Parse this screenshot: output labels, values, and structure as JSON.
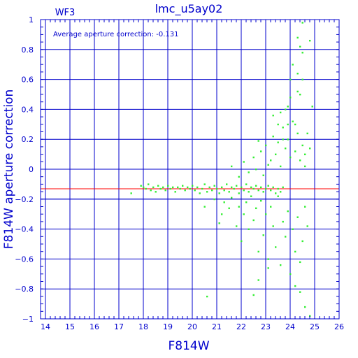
{
  "chart_data": {
    "type": "scatter",
    "title": "lmc_u5ay02",
    "corner_label": "WF3",
    "annotation": "Average aperture correction: -0.131",
    "xlabel": "F814W",
    "ylabel": "F814W aperture correction",
    "xlim": [
      13.8,
      26
    ],
    "ylim": [
      -1,
      1
    ],
    "xticks": [
      14,
      15,
      16,
      17,
      18,
      19,
      20,
      21,
      22,
      23,
      24,
      25,
      26
    ],
    "yticks": [
      -1,
      -0.8,
      -0.6,
      -0.4,
      -0.2,
      0,
      0.2,
      0.4,
      0.6,
      0.8,
      1
    ],
    "ytick_labels": [
      "−1",
      "−0.8",
      "−0.6",
      "−0.4",
      "−0.2",
      "0",
      "0.2",
      "0.4",
      "0.6",
      "0.8",
      "1"
    ],
    "grid": true,
    "average_line": -0.131,
    "reference_line": -0.2,
    "colors": {
      "axes": "#0000cc",
      "points": "#33ee33",
      "average_line": "#ff0000",
      "text": "#0000cc"
    },
    "series": [
      {
        "values": [
          [
            17.5,
            -0.16
          ],
          [
            17.9,
            -0.11
          ],
          [
            18.0,
            -0.12
          ],
          [
            18.1,
            -0.13
          ],
          [
            18.2,
            -0.1
          ],
          [
            18.3,
            -0.14
          ],
          [
            18.4,
            -0.12
          ],
          [
            18.5,
            -0.15
          ],
          [
            18.6,
            -0.11
          ],
          [
            18.7,
            -0.13
          ],
          [
            18.8,
            -0.12
          ],
          [
            18.9,
            -0.14
          ],
          [
            19.0,
            -0.11
          ],
          [
            19.1,
            -0.13
          ],
          [
            19.2,
            -0.12
          ],
          [
            19.3,
            -0.15
          ],
          [
            19.4,
            -0.12
          ],
          [
            19.5,
            -0.13
          ],
          [
            19.6,
            -0.11
          ],
          [
            19.7,
            -0.14
          ],
          [
            19.8,
            -0.12
          ],
          [
            19.9,
            -0.13
          ],
          [
            20.0,
            -0.11
          ],
          [
            20.1,
            -0.14
          ],
          [
            20.2,
            -0.12
          ],
          [
            20.3,
            -0.16
          ],
          [
            20.4,
            -0.13
          ],
          [
            20.5,
            -0.1
          ],
          [
            20.6,
            -0.15
          ],
          [
            20.7,
            -0.12
          ],
          [
            20.8,
            -0.14
          ],
          [
            20.9,
            -0.11
          ],
          [
            21.0,
            -0.13
          ],
          [
            21.1,
            -0.16
          ],
          [
            21.2,
            -0.12
          ],
          [
            21.3,
            -0.14
          ],
          [
            21.4,
            -0.1
          ],
          [
            21.5,
            -0.15
          ],
          [
            21.6,
            -0.12
          ],
          [
            21.7,
            -0.13
          ],
          [
            21.8,
            -0.11
          ],
          [
            21.9,
            -0.16
          ],
          [
            22.0,
            -0.12
          ],
          [
            22.1,
            -0.14
          ],
          [
            22.2,
            -0.1
          ],
          [
            22.3,
            -0.15
          ],
          [
            22.4,
            -0.12
          ],
          [
            22.5,
            -0.13
          ],
          [
            22.6,
            -0.11
          ],
          [
            22.7,
            -0.14
          ],
          [
            22.8,
            -0.12
          ],
          [
            22.9,
            -0.15
          ],
          [
            23.0,
            -0.13
          ],
          [
            23.1,
            -0.11
          ],
          [
            23.2,
            -0.14
          ],
          [
            23.3,
            -0.12
          ],
          [
            23.4,
            -0.16
          ],
          [
            23.5,
            -0.13
          ],
          [
            23.6,
            -0.15
          ],
          [
            23.7,
            -0.12
          ],
          [
            20.5,
            -0.25
          ],
          [
            20.9,
            -0.2
          ],
          [
            21.1,
            -0.36
          ],
          [
            21.2,
            -0.3
          ],
          [
            21.3,
            -0.22
          ],
          [
            21.5,
            -0.26
          ],
          [
            21.6,
            -0.19
          ],
          [
            21.8,
            -0.38
          ],
          [
            21.9,
            -0.25
          ],
          [
            22.0,
            -0.48
          ],
          [
            22.1,
            -0.3
          ],
          [
            22.2,
            -0.22
          ],
          [
            22.3,
            -0.4
          ],
          [
            22.4,
            -0.18
          ],
          [
            22.5,
            -0.34
          ],
          [
            22.6,
            -0.26
          ],
          [
            22.7,
            -0.55
          ],
          [
            22.8,
            -0.21
          ],
          [
            22.9,
            -0.44
          ],
          [
            23.0,
            -0.3
          ],
          [
            23.1,
            -0.6
          ],
          [
            23.2,
            -0.25
          ],
          [
            23.3,
            -0.38
          ],
          [
            23.4,
            -0.52
          ],
          [
            23.5,
            -0.18
          ],
          [
            23.6,
            -0.64
          ],
          [
            23.7,
            -0.35
          ],
          [
            23.8,
            -0.45
          ],
          [
            23.9,
            -0.28
          ],
          [
            24.0,
            -0.7
          ],
          [
            24.1,
            -0.4
          ],
          [
            24.2,
            -0.55
          ],
          [
            24.3,
            -0.32
          ],
          [
            24.4,
            -0.62
          ],
          [
            24.5,
            -0.48
          ],
          [
            24.6,
            -0.25
          ],
          [
            24.7,
            -0.38
          ],
          [
            22.7,
            -0.74
          ],
          [
            23.1,
            -0.66
          ],
          [
            24.2,
            -0.78
          ],
          [
            20.6,
            -0.85
          ],
          [
            22.5,
            -0.84
          ],
          [
            24.4,
            -0.82
          ],
          [
            24.8,
            -0.98
          ],
          [
            24.6,
            -0.92
          ],
          [
            21.6,
            0.02
          ],
          [
            21.9,
            -0.05
          ],
          [
            22.1,
            0.05
          ],
          [
            22.3,
            -0.02
          ],
          [
            22.5,
            0.08
          ],
          [
            22.6,
            0.0
          ],
          [
            22.8,
            0.12
          ],
          [
            22.9,
            -0.04
          ],
          [
            23.0,
            0.16
          ],
          [
            23.1,
            0.03
          ],
          [
            23.2,
            0.06
          ],
          [
            23.3,
            0.22
          ],
          [
            23.4,
            0.1
          ],
          [
            23.5,
            0.18
          ],
          [
            23.6,
            0.02
          ],
          [
            23.7,
            0.28
          ],
          [
            23.8,
            0.14
          ],
          [
            23.9,
            0.2
          ],
          [
            24.0,
            0.08
          ],
          [
            24.1,
            0.32
          ],
          [
            24.2,
            0.12
          ],
          [
            24.3,
            0.24
          ],
          [
            24.4,
            0.06
          ],
          [
            24.5,
            0.16
          ],
          [
            24.6,
            0.1
          ],
          [
            23.6,
            0.38
          ],
          [
            23.8,
            0.4
          ],
          [
            23.9,
            0.3
          ],
          [
            24.3,
            0.52
          ],
          [
            24.5,
            0.6
          ],
          [
            23.9,
            0.42
          ],
          [
            24.0,
            0.6
          ],
          [
            24.1,
            0.7
          ],
          [
            24.3,
            0.64
          ],
          [
            24.4,
            0.5
          ],
          [
            24.4,
            0.82
          ],
          [
            24.5,
            0.78
          ],
          [
            24.5,
            0.98
          ],
          [
            24.8,
            0.86
          ],
          [
            24.3,
            0.88
          ],
          [
            24.0,
            0.48
          ],
          [
            23.5,
            0.3
          ],
          [
            23.7,
            0.2
          ],
          [
            22.7,
            0.19
          ],
          [
            23.3,
            0.36
          ],
          [
            24.7,
            0.24
          ],
          [
            24.8,
            0.14
          ],
          [
            24.9,
            0.42
          ],
          [
            24.2,
            0.3
          ],
          [
            24.6,
            0.02
          ]
        ]
      }
    ]
  }
}
